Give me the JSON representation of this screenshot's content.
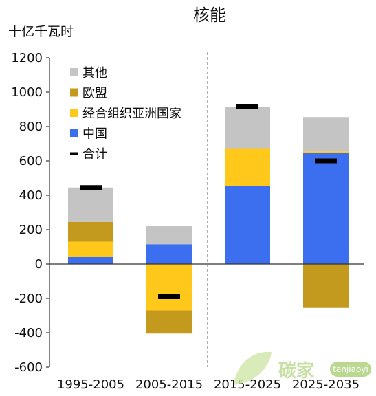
{
  "chart_data": {
    "type": "bar",
    "stacked": true,
    "title": "核能",
    "ylabel": "十亿千瓦时",
    "categories": [
      "1995-2005",
      "2005-2015",
      "2015-2025",
      "2025-2035"
    ],
    "ylim": [
      -600,
      1200
    ],
    "yticks": [
      -600,
      -400,
      -200,
      0,
      200,
      400,
      600,
      800,
      1000,
      1200
    ],
    "series": [
      {
        "name": "中国",
        "color": "#3b6ff0",
        "values": [
          40,
          115,
          455,
          645
        ]
      },
      {
        "name": "经合组织亚洲国家",
        "color": "#ffc81a",
        "values": [
          90,
          -270,
          215,
          10
        ]
      },
      {
        "name": "欧盟",
        "color": "#c49a1e",
        "values": [
          115,
          -135,
          0,
          -255
        ]
      },
      {
        "name": "其他",
        "color": "#c4c4c4",
        "values": [
          200,
          105,
          245,
          200
        ]
      }
    ],
    "total": {
      "name": "合计",
      "color": "#000000",
      "values": [
        445,
        -190,
        915,
        600
      ]
    },
    "legend_position": "top-left",
    "grid": false,
    "divider_after_category": 2
  },
  "watermark": {
    "text": "碳家",
    "subtext": "tanjiaoyi"
  }
}
